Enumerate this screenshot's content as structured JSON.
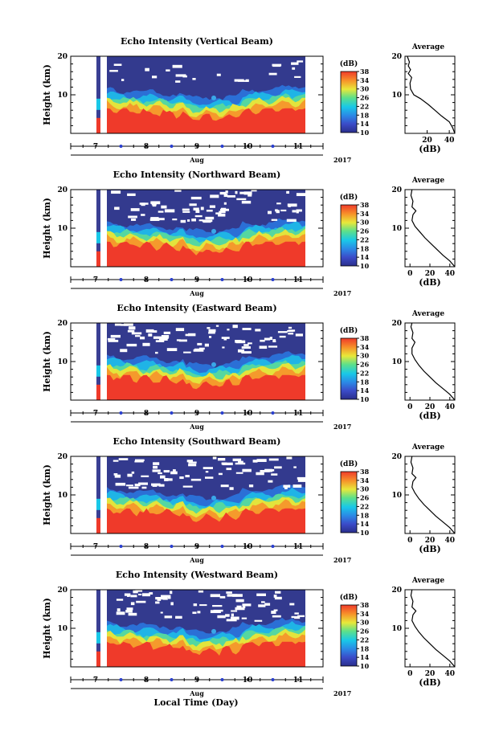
{
  "figure": {
    "xlabel": "Local Time (Day)",
    "month_label": "Aug",
    "year_label": "2017",
    "colorbar_unit": "(dB)",
    "average_title": "Average",
    "average_xlabel": "(dB)"
  },
  "chart_data": [
    {
      "type": "heatmap",
      "title": "Echo Intensity (Vertical Beam)",
      "ylabel": "Height (km)",
      "x_ticks": [
        "7",
        "8",
        "9",
        "10",
        "11"
      ],
      "y_ticks": [
        "10",
        "20"
      ],
      "ylim": [
        0,
        20
      ],
      "colorbar_ticks": [
        "10",
        "14",
        "18",
        "22",
        "26",
        "30",
        "34",
        "38"
      ],
      "colorbar_range": [
        10,
        38
      ],
      "average_profile": {
        "x_ticks": [
          "20",
          "40"
        ],
        "y_ticks": [
          "10",
          "20"
        ],
        "xlim": [
          0,
          45
        ],
        "points": [
          [
            45,
            0
          ],
          [
            43,
            1.5
          ],
          [
            40,
            3
          ],
          [
            33,
            4.5
          ],
          [
            27,
            6
          ],
          [
            21,
            7.5
          ],
          [
            14,
            9
          ],
          [
            8,
            10
          ],
          [
            5,
            11.5
          ],
          [
            4.5,
            13
          ],
          [
            6,
            14.5
          ],
          [
            3,
            15.5
          ],
          [
            5,
            16.5
          ],
          [
            3,
            17.5
          ],
          [
            4,
            18.5
          ],
          [
            2,
            20
          ]
        ]
      }
    },
    {
      "type": "heatmap",
      "title": "Echo Intensity (Northward Beam)",
      "ylabel": "Height (km)",
      "x_ticks": [
        "7",
        "8",
        "9",
        "10",
        "11"
      ],
      "y_ticks": [
        "10",
        "20"
      ],
      "ylim": [
        0,
        20
      ],
      "colorbar_ticks": [
        "10",
        "14",
        "18",
        "22",
        "26",
        "30",
        "34",
        "38"
      ],
      "colorbar_range": [
        10,
        38
      ],
      "average_profile": {
        "x_ticks": [
          "0",
          "20",
          "40"
        ],
        "y_ticks": [
          "10",
          "20"
        ],
        "xlim": [
          -5,
          45
        ],
        "points": [
          [
            45,
            0
          ],
          [
            40,
            1.5
          ],
          [
            33,
            3
          ],
          [
            27,
            4.5
          ],
          [
            21,
            6
          ],
          [
            15,
            7.5
          ],
          [
            10,
            9
          ],
          [
            5,
            10.5
          ],
          [
            2,
            12
          ],
          [
            3,
            13.5
          ],
          [
            6,
            14.5
          ],
          [
            2,
            15.5
          ],
          [
            3,
            17
          ],
          [
            1,
            18.5
          ],
          [
            2,
            20
          ]
        ]
      }
    },
    {
      "type": "heatmap",
      "title": "Echo Intensity (Eastward Beam)",
      "ylabel": "Height (km)",
      "x_ticks": [
        "7",
        "8",
        "9",
        "10",
        "11"
      ],
      "y_ticks": [
        "10",
        "20"
      ],
      "ylim": [
        0,
        20
      ],
      "colorbar_ticks": [
        "10",
        "14",
        "18",
        "22",
        "26",
        "30",
        "34",
        "38"
      ],
      "colorbar_range": [
        10,
        38
      ],
      "average_profile": {
        "x_ticks": [
          "0",
          "20",
          "40"
        ],
        "y_ticks": [
          "10",
          "20"
        ],
        "xlim": [
          -5,
          45
        ],
        "points": [
          [
            45,
            0
          ],
          [
            40,
            1.5
          ],
          [
            33,
            3
          ],
          [
            26,
            4.5
          ],
          [
            20,
            6
          ],
          [
            14,
            7.5
          ],
          [
            9,
            9
          ],
          [
            5,
            10.5
          ],
          [
            2,
            12
          ],
          [
            2,
            13.5
          ],
          [
            5,
            15
          ],
          [
            2,
            16
          ],
          [
            3,
            17.5
          ],
          [
            1,
            19
          ],
          [
            2,
            20
          ]
        ]
      }
    },
    {
      "type": "heatmap",
      "title": "Echo Intensity (Southward Beam)",
      "ylabel": "Height (km)",
      "x_ticks": [
        "7",
        "8",
        "9",
        "10",
        "11"
      ],
      "y_ticks": [
        "10",
        "20"
      ],
      "ylim": [
        0,
        20
      ],
      "colorbar_ticks": [
        "10",
        "14",
        "18",
        "22",
        "26",
        "30",
        "34",
        "38"
      ],
      "colorbar_range": [
        10,
        38
      ],
      "average_profile": {
        "x_ticks": [
          "0",
          "20",
          "40"
        ],
        "y_ticks": [
          "10",
          "20"
        ],
        "xlim": [
          -5,
          45
        ],
        "points": [
          [
            45,
            0
          ],
          [
            40,
            1.5
          ],
          [
            33,
            3
          ],
          [
            26,
            4.5
          ],
          [
            20,
            6
          ],
          [
            14,
            7.5
          ],
          [
            9,
            9
          ],
          [
            5,
            10.5
          ],
          [
            2,
            12
          ],
          [
            3,
            13.5
          ],
          [
            6,
            14.5
          ],
          [
            2,
            15.5
          ],
          [
            3,
            17
          ],
          [
            1,
            18.5
          ],
          [
            2,
            20
          ]
        ]
      }
    },
    {
      "type": "heatmap",
      "title": "Echo Intensity (Westward Beam)",
      "ylabel": "Height (km)",
      "x_ticks": [
        "7",
        "8",
        "9",
        "10",
        "11"
      ],
      "y_ticks": [
        "10",
        "20"
      ],
      "ylim": [
        0,
        20
      ],
      "colorbar_ticks": [
        "10",
        "14",
        "18",
        "22",
        "26",
        "30",
        "34",
        "38"
      ],
      "colorbar_range": [
        10,
        38
      ],
      "average_profile": {
        "x_ticks": [
          "0",
          "20",
          "40"
        ],
        "y_ticks": [
          "10",
          "20"
        ],
        "xlim": [
          -5,
          45
        ],
        "points": [
          [
            45,
            0
          ],
          [
            40,
            1.5
          ],
          [
            33,
            3
          ],
          [
            26,
            4.5
          ],
          [
            20,
            6
          ],
          [
            14,
            7.5
          ],
          [
            9,
            9
          ],
          [
            5,
            10.5
          ],
          [
            2,
            12
          ],
          [
            3,
            13.5
          ],
          [
            6,
            14.5
          ],
          [
            2,
            15.5
          ],
          [
            3,
            17
          ],
          [
            1,
            18.5
          ],
          [
            2,
            20
          ]
        ]
      }
    }
  ]
}
